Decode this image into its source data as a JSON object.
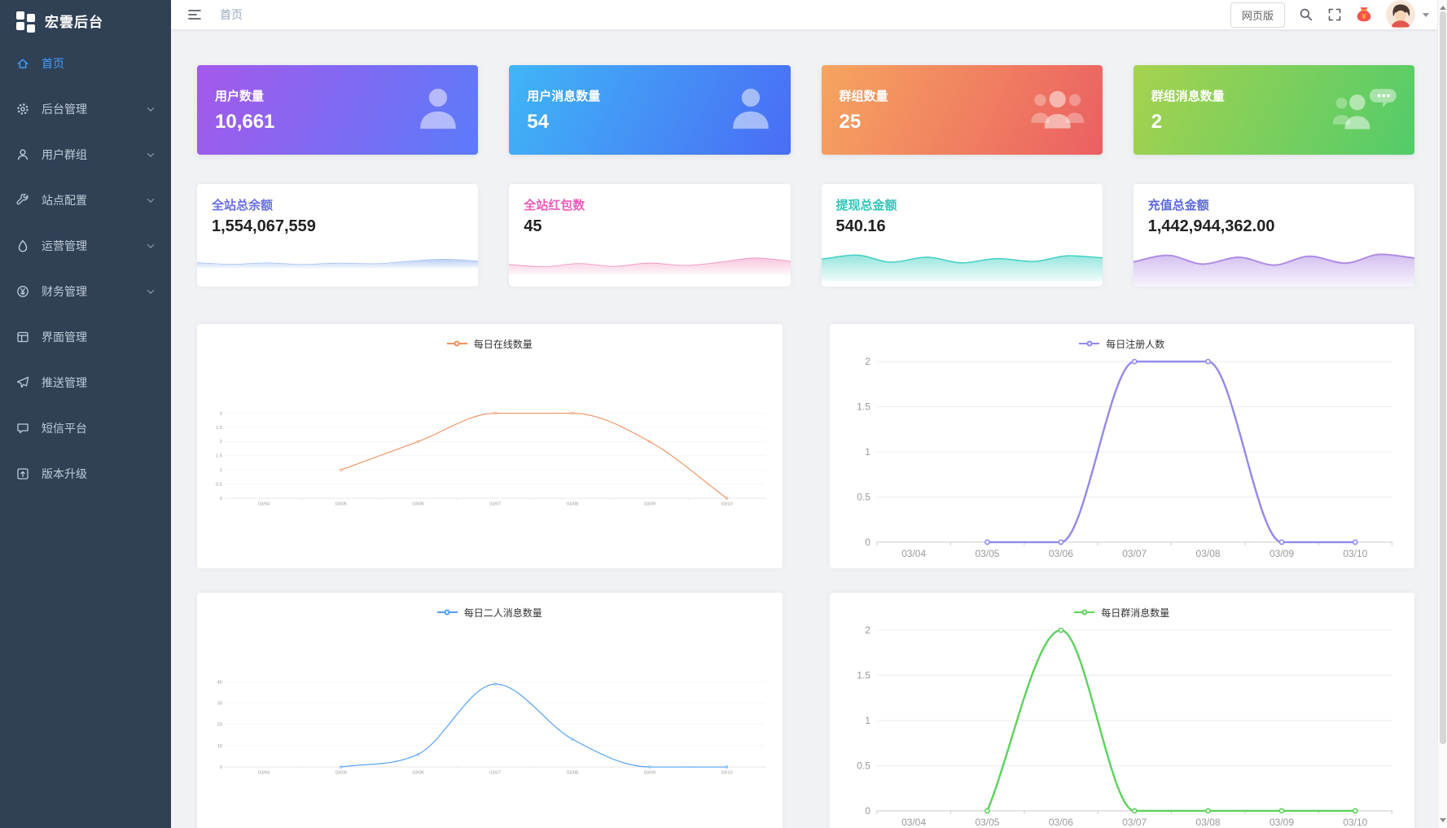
{
  "app": {
    "title": "宏雲后台"
  },
  "header": {
    "breadcrumb": "首页",
    "web_version_label": "网页版",
    "icons": [
      "menu-fold-icon",
      "search-icon",
      "fullscreen-icon",
      "red-packet-icon",
      "avatar",
      "caret-down-icon"
    ]
  },
  "sidebar": {
    "items": [
      {
        "label": "首页",
        "icon": "home",
        "active": true,
        "has_children": false
      },
      {
        "label": "后台管理",
        "icon": "gear",
        "active": false,
        "has_children": true
      },
      {
        "label": "用户群组",
        "icon": "user",
        "active": false,
        "has_children": true
      },
      {
        "label": "站点配置",
        "icon": "wrench",
        "active": false,
        "has_children": true
      },
      {
        "label": "运营管理",
        "icon": "droplet",
        "active": false,
        "has_children": true
      },
      {
        "label": "财务管理",
        "icon": "finance",
        "active": false,
        "has_children": true
      },
      {
        "label": "界面管理",
        "icon": "layout",
        "active": false,
        "has_children": false
      },
      {
        "label": "推送管理",
        "icon": "send",
        "active": false,
        "has_children": false
      },
      {
        "label": "短信平台",
        "icon": "message",
        "active": false,
        "has_children": false
      },
      {
        "label": "版本升级",
        "icon": "upgrade",
        "active": false,
        "has_children": false
      }
    ]
  },
  "stat_cards": [
    {
      "title": "用户数量",
      "value": "10,661",
      "icon": "user-silhouette",
      "gradient": [
        "#a559eb",
        "#5b7bfa"
      ]
    },
    {
      "title": "用户消息数量",
      "value": "54",
      "icon": "user-silhouette",
      "gradient": [
        "#3fb6f6",
        "#4a6cf5"
      ]
    },
    {
      "title": "群组数量",
      "value": "25",
      "icon": "users-silhouette",
      "gradient": [
        "#f6a55f",
        "#eb5f62"
      ]
    },
    {
      "title": "群组消息数量",
      "value": "2",
      "icon": "users-chat-silhouette",
      "gradient": [
        "#a6d24e",
        "#52cc6a"
      ]
    }
  ],
  "metric_cards": [
    {
      "title": "全站总余额",
      "value": "1,554,067,559",
      "color": "#6a6fe8",
      "wave_color": "#7ea6ee",
      "wave": [
        46,
        32,
        44,
        30,
        42,
        36,
        58,
        76,
        60
      ]
    },
    {
      "title": "全站红包数",
      "value": "45",
      "color": "#ee5cbb",
      "wave_color": "#f398c3",
      "wave": [
        40,
        30,
        44,
        32,
        46,
        36,
        50,
        68,
        54
      ]
    },
    {
      "title": "提现总金额",
      "value": "540.16",
      "color": "#2fc7b9",
      "wave_color": "#41d0c3",
      "wave": [
        58,
        70,
        50,
        64,
        48,
        60,
        52,
        68,
        62
      ]
    },
    {
      "title": "充值总金额",
      "value": "1,442,944,362.00",
      "color": "#5b68e0",
      "wave_color": "#b08ce5",
      "wave": [
        50,
        64,
        46,
        60,
        44,
        62,
        48,
        66,
        58
      ]
    }
  ],
  "chart_data": [
    {
      "type": "line",
      "title": "每日在线数量",
      "color": "#f0915c",
      "categories": [
        "03/04",
        "03/05",
        "03/06",
        "03/07",
        "03/08",
        "03/09",
        "03/10"
      ],
      "values": [
        null,
        1,
        2,
        3,
        3,
        2,
        0
      ],
      "ylim": [
        0,
        3
      ],
      "yticks": [
        0,
        0.5,
        1,
        1.5,
        2,
        2.5,
        3
      ],
      "xlabel": "",
      "ylabel": "",
      "legend_position": "top",
      "grid": true
    },
    {
      "type": "line",
      "title": "每日注册人数",
      "color": "#9289ea",
      "categories": [
        "03/04",
        "03/05",
        "03/06",
        "03/07",
        "03/08",
        "03/09",
        "03/10"
      ],
      "values": [
        null,
        0,
        0,
        2,
        2,
        0,
        0
      ],
      "ylim": [
        0,
        2
      ],
      "yticks": [
        0,
        0.5,
        1,
        1.5,
        2
      ],
      "xlabel": "",
      "ylabel": "",
      "legend_position": "top",
      "grid": true
    },
    {
      "type": "line",
      "title": "每日二人消息数量",
      "color": "#4f9ef8",
      "categories": [
        "03/04",
        "03/05",
        "03/06",
        "03/07",
        "03/08",
        "03/09",
        "03/10"
      ],
      "values": [
        null,
        0,
        6,
        39,
        13,
        0,
        0
      ],
      "ylim": [
        0,
        40
      ],
      "yticks": [
        0,
        10,
        20,
        30,
        40
      ],
      "xlabel": "",
      "ylabel": "",
      "legend_position": "top",
      "grid": true
    },
    {
      "type": "line",
      "title": "每日群消息数量",
      "color": "#5cd25c",
      "categories": [
        "03/04",
        "03/05",
        "03/06",
        "03/07",
        "03/08",
        "03/09",
        "03/10"
      ],
      "values": [
        null,
        0,
        2,
        0,
        0,
        0,
        0
      ],
      "ylim": [
        0,
        2
      ],
      "yticks": [
        0,
        0.5,
        1,
        1.5,
        2
      ],
      "xlabel": "",
      "ylabel": "",
      "legend_position": "top",
      "grid": true
    }
  ]
}
